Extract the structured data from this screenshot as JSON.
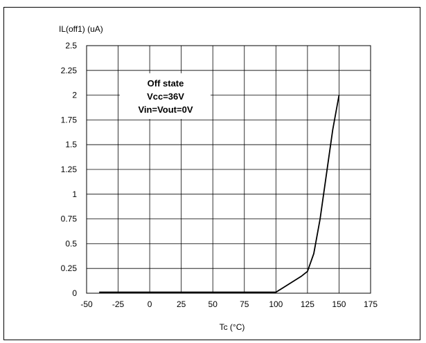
{
  "chart_data": {
    "type": "line",
    "ylabel": "IL(off1) (uA)",
    "xlabel": "Tc (°C)",
    "xlim": [
      -50,
      175
    ],
    "ylim": [
      0,
      2.5
    ],
    "x_ticks": [
      "-50",
      "-25",
      "0",
      "25",
      "50",
      "75",
      "100",
      "125",
      "150",
      "175"
    ],
    "y_ticks": [
      "0",
      "0.25",
      "0.5",
      "0.75",
      "1",
      "1.25",
      "1.5",
      "1.75",
      "2",
      "2.25",
      "2.5"
    ],
    "grid": true,
    "annotation": [
      "Off state",
      "Vcc=36V",
      "Vin=Vout=0V"
    ],
    "series": [
      {
        "x": [
          -40,
          0,
          50,
          100,
          105,
          110,
          115,
          120,
          125,
          130,
          135,
          140,
          145,
          150
        ],
        "y": [
          0.01,
          0.01,
          0.01,
          0.01,
          0.05,
          0.09,
          0.13,
          0.17,
          0.22,
          0.4,
          0.75,
          1.2,
          1.65,
          2.0
        ]
      }
    ],
    "colors": {
      "line": "#000000",
      "grid": "#000000",
      "background": "#ffffff"
    }
  }
}
